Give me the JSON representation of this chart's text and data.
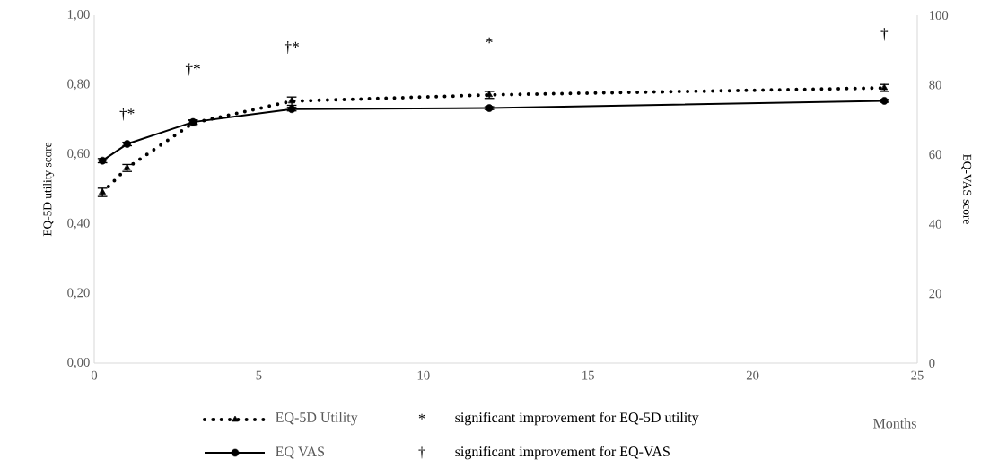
{
  "chart_data": {
    "type": "line",
    "xlabel": "Months",
    "ylabel": "EQ-5D utility score",
    "y2label": "EQ-VAS score",
    "x": [
      0.25,
      1,
      3,
      6,
      12,
      24
    ],
    "series": [
      {
        "name": "EQ-5D Utility",
        "color": "#000000",
        "marker": "triangle",
        "line_style": "dotted",
        "values": [
          0.491,
          0.561,
          0.69,
          0.753,
          0.771,
          0.791
        ],
        "errors": [
          0.012,
          0.01,
          0.008,
          0.012,
          0.01,
          0.01
        ]
      },
      {
        "name": "EQ VAS",
        "color": "#000000",
        "marker": "circle",
        "line_style": "solid",
        "axis": "y2",
        "values": [
          58.2,
          63.0,
          69.3,
          73.0,
          73.3,
          75.4
        ],
        "errors": [
          0.6,
          0.5,
          0.6,
          0.5,
          0.4,
          0.4
        ]
      }
    ],
    "xlim": [
      0,
      25
    ],
    "xticks": [
      0,
      5,
      10,
      15,
      20,
      25
    ],
    "ylim": [
      0,
      1
    ],
    "yticks": [
      {
        "value": 0,
        "label": "0,00"
      },
      {
        "value": 0.2,
        "label": "0,20"
      },
      {
        "value": 0.4,
        "label": "0,40"
      },
      {
        "value": 0.6,
        "label": "0,60"
      },
      {
        "value": 0.8,
        "label": "0,80"
      },
      {
        "value": 1,
        "label": "1,00"
      }
    ],
    "y2lim": [
      0,
      100
    ],
    "y2ticks": [
      0,
      20,
      40,
      60,
      80,
      100
    ],
    "legend": "bottom",
    "annotations": [
      "†*",
      "†*",
      "†*",
      "*",
      "†",
      "*",
      "significant improvement for EQ-5D utility",
      "†",
      "significant improvement for EQ-VAS"
    ]
  }
}
